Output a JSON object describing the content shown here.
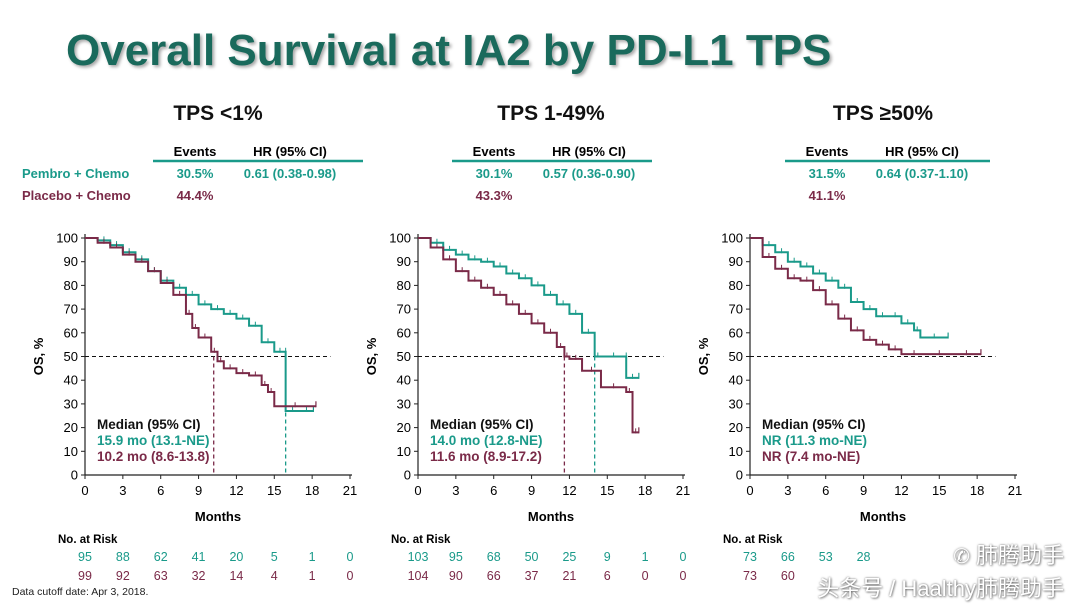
{
  "title": "Overall Survival at IA2 by PD-L1 TPS",
  "footer": "Data cutoff date: Apr 3, 2018.",
  "watermark": {
    "line1": "肺腾助手",
    "line2": "头条号 / Haalthy肺腾助手"
  },
  "colors": {
    "pembro": "#1a9a8a",
    "placebo": "#7a2a48",
    "title": "#1a6a5c"
  },
  "row_labels": {
    "pembro": "Pembro + Chemo",
    "placebo": "Placebo + Chemo",
    "events_header": "Events",
    "hr_header": "HR (95% CI)",
    "at_risk": "No. at Risk"
  },
  "chart_data": [
    {
      "type": "line",
      "subtitle": "TPS <1%",
      "xlabel": "Months",
      "ylabel": "OS, %",
      "xlim": [
        0,
        21
      ],
      "ylim": [
        0,
        100
      ],
      "xticks": [
        0,
        3,
        6,
        9,
        12,
        15,
        18,
        21
      ],
      "yticks": [
        0,
        10,
        20,
        30,
        40,
        50,
        60,
        70,
        80,
        90,
        100
      ],
      "reference_line": 50,
      "events_pembro": "30.5%",
      "events_placebo": "44.4%",
      "hr": "0.61 (0.38-0.98)",
      "median_header": "Median (95% CI)",
      "median_pembro": "15.9 mo (13.1-NE)",
      "median_placebo": "10.2 mo (8.6-13.8)",
      "median_pembro_x": 15.9,
      "median_placebo_x": 10.2,
      "at_risk_pembro": [
        95,
        88,
        62,
        41,
        20,
        5,
        1,
        0
      ],
      "at_risk_placebo": [
        99,
        92,
        63,
        32,
        14,
        4,
        1,
        0
      ],
      "series": [
        {
          "key": "pembro",
          "x": [
            0,
            1,
            2,
            3,
            4,
            5,
            6,
            7,
            8,
            9,
            10,
            11,
            12,
            13,
            14,
            15,
            15.9,
            15.9,
            17,
            18.1
          ],
          "y": [
            100,
            99,
            97,
            94,
            91,
            86,
            82,
            79,
            76,
            72,
            70,
            68,
            66,
            63,
            56,
            52,
            52,
            27,
            27,
            27
          ]
        },
        {
          "key": "placebo",
          "x": [
            0,
            1,
            2,
            3,
            4,
            5,
            6,
            7,
            8,
            8.5,
            9,
            10,
            10.5,
            11,
            12,
            13,
            14,
            14.5,
            15,
            18.3
          ],
          "y": [
            100,
            98,
            96,
            93,
            90,
            86,
            81,
            76,
            68,
            62,
            58,
            52,
            48,
            45,
            43,
            42,
            38,
            35,
            29,
            29
          ]
        }
      ]
    },
    {
      "type": "line",
      "subtitle": "TPS 1-49%",
      "xlabel": "Months",
      "ylabel": "OS, %",
      "xlim": [
        0,
        21
      ],
      "ylim": [
        0,
        100
      ],
      "xticks": [
        0,
        3,
        6,
        9,
        12,
        15,
        18,
        21
      ],
      "yticks": [
        0,
        10,
        20,
        30,
        40,
        50,
        60,
        70,
        80,
        90,
        100
      ],
      "reference_line": 50,
      "events_pembro": "30.1%",
      "events_placebo": "43.3%",
      "hr": "0.57 (0.36-0.90)",
      "median_header": "Median (95% CI)",
      "median_pembro": "14.0 mo (12.8-NE)",
      "median_placebo": "11.6 mo (8.9-17.2)",
      "median_pembro_x": 14.0,
      "median_placebo_x": 11.6,
      "at_risk_pembro": [
        103,
        95,
        68,
        50,
        25,
        9,
        1,
        0
      ],
      "at_risk_placebo": [
        104,
        90,
        66,
        37,
        21,
        6,
        0,
        0
      ],
      "series": [
        {
          "key": "pembro",
          "x": [
            0,
            1,
            2,
            3,
            4,
            5,
            6,
            7,
            8,
            9,
            10,
            11,
            12,
            13,
            14,
            14.5,
            16.5,
            16.5,
            17.5
          ],
          "y": [
            100,
            98,
            95,
            93,
            91,
            90,
            88,
            85,
            83,
            80,
            76,
            72,
            68,
            60,
            50,
            50,
            50,
            41,
            41
          ]
        },
        {
          "key": "placebo",
          "x": [
            0,
            1,
            2,
            3,
            4,
            5,
            6,
            7,
            8,
            9,
            10,
            11,
            11.6,
            12,
            13,
            14.5,
            16.5,
            17,
            17.5
          ],
          "y": [
            100,
            96,
            91,
            86,
            82,
            79,
            76,
            72,
            68,
            64,
            60,
            54,
            50,
            49,
            44,
            37,
            35,
            18,
            18
          ]
        }
      ]
    },
    {
      "type": "line",
      "subtitle": "TPS ≥50%",
      "xlabel": "Months",
      "ylabel": "OS, %",
      "xlim": [
        0,
        21
      ],
      "ylim": [
        0,
        100
      ],
      "xticks": [
        0,
        3,
        6,
        9,
        12,
        15,
        18,
        21
      ],
      "yticks": [
        0,
        10,
        20,
        30,
        40,
        50,
        60,
        70,
        80,
        90,
        100
      ],
      "reference_line": 50,
      "events_pembro": "31.5%",
      "events_placebo": "41.1%",
      "hr": "0.64 (0.37-1.10)",
      "median_header": "Median (95% CI)",
      "median_pembro": "NR (11.3 mo-NE)",
      "median_placebo": "NR (7.4 mo-NE)",
      "at_risk_pembro": [
        73,
        66,
        53,
        28,
        "",
        "",
        "",
        ""
      ],
      "at_risk_placebo": [
        73,
        60,
        "",
        "",
        "",
        "",
        "",
        ""
      ],
      "series": [
        {
          "key": "pembro",
          "x": [
            0,
            1,
            2,
            3,
            4,
            5,
            6,
            7,
            8,
            9,
            10,
            11,
            12,
            13,
            13.5,
            15.7
          ],
          "y": [
            100,
            97,
            94,
            90,
            88,
            85,
            82,
            79,
            73,
            70,
            67,
            67,
            64,
            61,
            58,
            58
          ]
        },
        {
          "key": "placebo",
          "x": [
            0,
            1,
            2,
            3,
            4,
            5,
            6,
            7,
            8,
            9,
            10,
            11,
            12,
            14,
            16,
            18.3
          ],
          "y": [
            100,
            92,
            87,
            83,
            82,
            78,
            72,
            66,
            61,
            57,
            55,
            53,
            51,
            51,
            51,
            51
          ]
        }
      ]
    }
  ]
}
